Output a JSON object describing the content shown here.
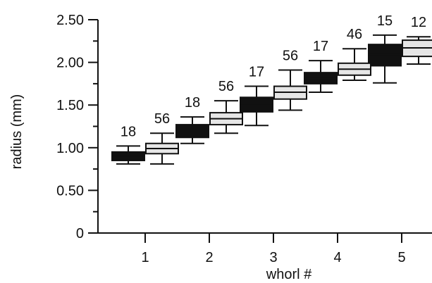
{
  "chart_data": {
    "type": "box",
    "xlabel": "whorl #",
    "ylabel": "radius (mm)",
    "ylim": [
      0,
      2.5
    ],
    "yticks": [
      "0",
      "0.50",
      "1.00",
      "1.50",
      "2.00",
      "2.50"
    ],
    "categories": [
      "1",
      "2",
      "3",
      "4",
      "5"
    ],
    "grid": false,
    "legend": "none",
    "colors": {
      "dark_box": "#111111",
      "light_box": "#e6e6e6",
      "outline": "#111111"
    },
    "series": [
      {
        "style": "dark",
        "boxes": [
          {
            "category": "1",
            "whisker_low": 0.81,
            "q1": 0.85,
            "median": 0.9,
            "q3": 0.95,
            "whisker_high": 1.02,
            "n": "18"
          },
          {
            "category": "2",
            "whisker_low": 1.05,
            "q1": 1.12,
            "median": 1.2,
            "q3": 1.27,
            "whisker_high": 1.36,
            "n": "18"
          },
          {
            "category": "3",
            "whisker_low": 1.26,
            "q1": 1.42,
            "median": 1.5,
            "q3": 1.59,
            "whisker_high": 1.72,
            "n": "17"
          },
          {
            "category": "4",
            "whisker_low": 1.65,
            "q1": 1.75,
            "median": 1.81,
            "q3": 1.88,
            "whisker_high": 2.02,
            "n": "17"
          },
          {
            "category": "5",
            "whisker_low": 1.76,
            "q1": 1.96,
            "median": 2.09,
            "q3": 2.21,
            "whisker_high": 2.32,
            "n": "15"
          }
        ]
      },
      {
        "style": "light",
        "boxes": [
          {
            "category": "1",
            "whisker_low": 0.81,
            "q1": 0.93,
            "median": 0.99,
            "q3": 1.05,
            "whisker_high": 1.17,
            "n": "56"
          },
          {
            "category": "2",
            "whisker_low": 1.17,
            "q1": 1.27,
            "median": 1.34,
            "q3": 1.41,
            "whisker_high": 1.55,
            "n": "56"
          },
          {
            "category": "3",
            "whisker_low": 1.44,
            "q1": 1.57,
            "median": 1.65,
            "q3": 1.72,
            "whisker_high": 1.91,
            "n": "56"
          },
          {
            "category": "4",
            "whisker_low": 1.79,
            "q1": 1.85,
            "median": 1.92,
            "q3": 1.99,
            "whisker_high": 2.16,
            "n": "46"
          },
          {
            "category": "5",
            "whisker_low": 1.98,
            "q1": 2.07,
            "median": 2.17,
            "q3": 2.26,
            "whisker_high": 2.3,
            "n": "12"
          }
        ]
      }
    ]
  }
}
